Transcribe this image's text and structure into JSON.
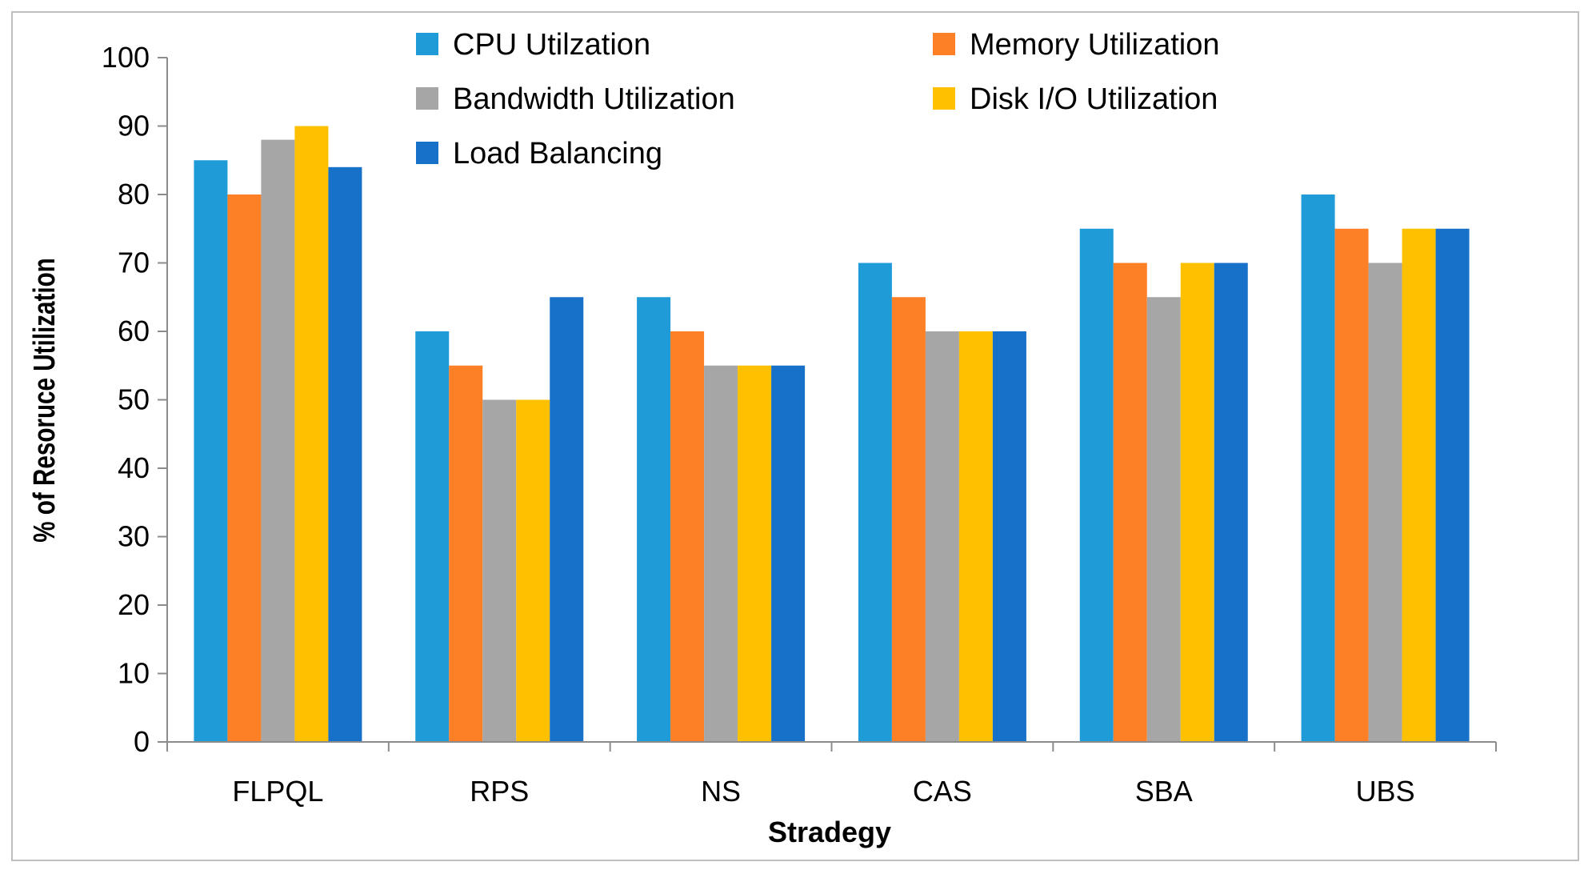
{
  "chart_data": {
    "type": "bar",
    "title": "",
    "xlabel": "Stradegy",
    "ylabel": "% of Resoruce Utilization",
    "ylim": [
      0,
      100
    ],
    "yticks": [
      0,
      10,
      20,
      30,
      40,
      50,
      60,
      70,
      80,
      90,
      100
    ],
    "grid": false,
    "legend_position": "top",
    "categories": [
      "FLPQL",
      "RPS",
      "NS",
      "CAS",
      "SBA",
      "UBS"
    ],
    "series": [
      {
        "name": "CPU Utilzation",
        "color": "#1f9bd8",
        "values": [
          85,
          60,
          65,
          70,
          75,
          80
        ]
      },
      {
        "name": "Memory Utilization",
        "color": "#fd7f26",
        "values": [
          80,
          55,
          60,
          65,
          70,
          75
        ]
      },
      {
        "name": "Bandwidth Utilization",
        "color": "#a6a6a6",
        "values": [
          88,
          50,
          55,
          60,
          65,
          70
        ]
      },
      {
        "name": "Disk I/O Utilization",
        "color": "#ffc000",
        "values": [
          90,
          50,
          55,
          60,
          70,
          75
        ]
      },
      {
        "name": "Load Balancing",
        "color": "#1771c8",
        "values": [
          84,
          65,
          55,
          60,
          70,
          75
        ]
      }
    ]
  }
}
